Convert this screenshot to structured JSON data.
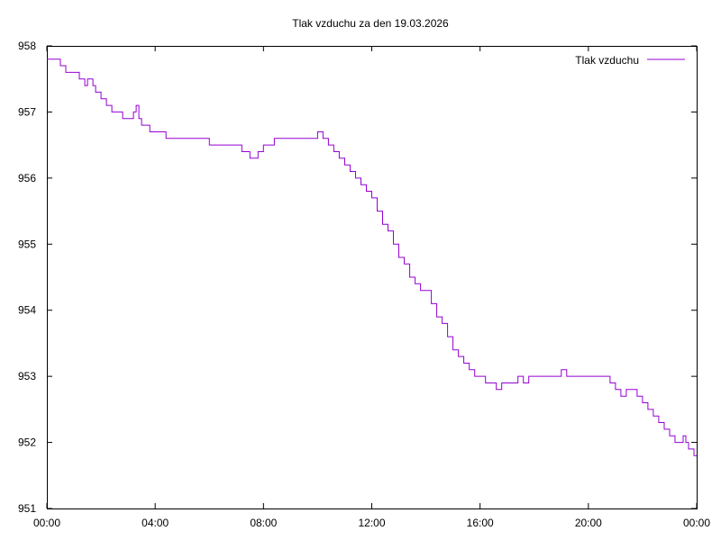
{
  "chart_data": {
    "type": "line",
    "title": "Tlak vzduchu za den 19.03.2026",
    "xlabel": "",
    "ylabel": "",
    "xlim": [
      0,
      24
    ],
    "ylim": [
      951,
      958
    ],
    "x_ticks": [
      {
        "value": 0,
        "label": "00:00"
      },
      {
        "value": 4,
        "label": "04:00"
      },
      {
        "value": 8,
        "label": "08:00"
      },
      {
        "value": 12,
        "label": "12:00"
      },
      {
        "value": 16,
        "label": "16:00"
      },
      {
        "value": 20,
        "label": "20:00"
      },
      {
        "value": 24,
        "label": "00:00"
      }
    ],
    "y_ticks": [
      {
        "value": 951,
        "label": "951"
      },
      {
        "value": 952,
        "label": "952"
      },
      {
        "value": 953,
        "label": "953"
      },
      {
        "value": 954,
        "label": "954"
      },
      {
        "value": 955,
        "label": "955"
      },
      {
        "value": 956,
        "label": "956"
      },
      {
        "value": 957,
        "label": "957"
      },
      {
        "value": 958,
        "label": "958"
      }
    ],
    "grid": false,
    "legend_position": "top-right",
    "series": [
      {
        "name": "Tlak vzduchu",
        "color": "#9400d3",
        "x": [
          0.0,
          0.4,
          0.5,
          0.6,
          0.7,
          0.8,
          1.0,
          1.2,
          1.3,
          1.4,
          1.5,
          1.6,
          1.7,
          1.8,
          2.0,
          2.2,
          2.4,
          2.6,
          2.8,
          3.0,
          3.2,
          3.3,
          3.4,
          3.5,
          3.6,
          3.8,
          4.0,
          4.4,
          4.8,
          5.2,
          5.6,
          6.0,
          6.4,
          6.8,
          7.2,
          7.5,
          7.6,
          7.8,
          8.0,
          8.4,
          8.8,
          9.2,
          9.6,
          9.8,
          10.0,
          10.2,
          10.4,
          10.6,
          10.8,
          11.0,
          11.2,
          11.4,
          11.6,
          11.8,
          12.0,
          12.2,
          12.4,
          12.6,
          12.8,
          13.0,
          13.2,
          13.4,
          13.6,
          13.8,
          14.0,
          14.2,
          14.4,
          14.6,
          14.8,
          15.0,
          15.2,
          15.4,
          15.6,
          15.8,
          16.0,
          16.2,
          16.4,
          16.6,
          16.8,
          17.0,
          17.2,
          17.4,
          17.6,
          17.8,
          18.0,
          18.4,
          18.8,
          19.0,
          19.2,
          19.6,
          20.0,
          20.4,
          20.8,
          21.0,
          21.2,
          21.4,
          21.6,
          21.8,
          22.0,
          22.2,
          22.4,
          22.6,
          22.8,
          23.0,
          23.2,
          23.4,
          23.5,
          23.6,
          23.7,
          23.8,
          23.9,
          24.0
        ],
        "values": [
          957.8,
          957.8,
          957.7,
          957.7,
          957.6,
          957.6,
          957.6,
          957.5,
          957.5,
          957.4,
          957.5,
          957.5,
          957.4,
          957.3,
          957.2,
          957.1,
          957.0,
          957.0,
          956.9,
          956.9,
          957.0,
          957.1,
          956.9,
          956.8,
          956.8,
          956.7,
          956.7,
          956.6,
          956.6,
          956.6,
          956.6,
          956.5,
          956.5,
          956.5,
          956.4,
          956.3,
          956.3,
          956.4,
          956.5,
          956.6,
          956.6,
          956.6,
          956.6,
          956.6,
          956.7,
          956.6,
          956.5,
          956.4,
          956.3,
          956.2,
          956.1,
          956.0,
          955.9,
          955.8,
          955.7,
          955.5,
          955.3,
          955.2,
          955.0,
          954.8,
          954.7,
          954.5,
          954.4,
          954.3,
          954.3,
          954.1,
          953.9,
          953.8,
          953.6,
          953.4,
          953.3,
          953.2,
          953.1,
          953.0,
          953.0,
          952.9,
          952.9,
          952.8,
          952.9,
          952.9,
          952.9,
          953.0,
          952.9,
          953.0,
          953.0,
          953.0,
          953.0,
          953.1,
          953.0,
          953.0,
          953.0,
          953.0,
          952.9,
          952.8,
          952.7,
          952.8,
          952.8,
          952.7,
          952.6,
          952.5,
          952.4,
          952.3,
          952.2,
          952.1,
          952.0,
          952.0,
          952.1,
          952.0,
          951.9,
          951.9,
          951.8,
          951.8
        ]
      }
    ]
  }
}
